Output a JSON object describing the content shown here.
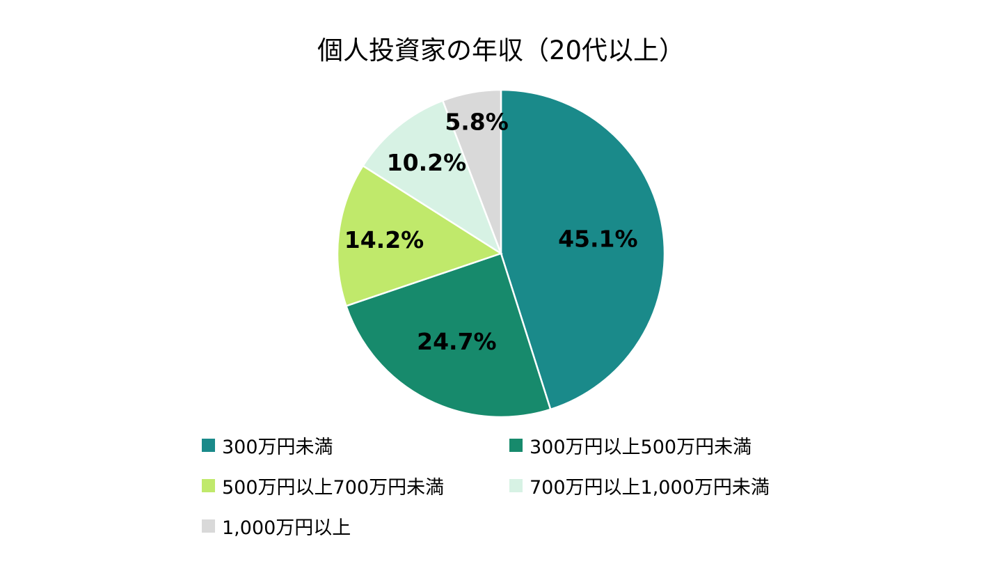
{
  "chart_data": {
    "type": "pie",
    "title": "個人投資家の年収（20代以上）",
    "categories": [
      "300万円未満",
      "300万円以上500万円未満",
      "500万円以上700万円未満",
      "700万円以上1,000万円未満",
      "1,000万円以上"
    ],
    "values": [
      45.1,
      24.7,
      14.2,
      10.2,
      5.8
    ],
    "labels": [
      "45.1%",
      "24.7%",
      "14.2%",
      "10.2%",
      "5.8%"
    ],
    "colors": [
      "#1a8a8a",
      "#178a6c",
      "#c0e96b",
      "#d7f2e4",
      "#d9d9d9"
    ],
    "start_angle": "12 o'clock",
    "direction": "clockwise",
    "legend_position": "bottom"
  },
  "title": "個人投資家の年収（20代以上）",
  "legend": [
    {
      "label": "300万円未満",
      "color": "#1a8a8a"
    },
    {
      "label": "300万円以上500万円未満",
      "color": "#178a6c"
    },
    {
      "label": "500万円以上700万円未満",
      "color": "#c0e96b"
    },
    {
      "label": "700万円以上1,000万円未満",
      "color": "#d7f2e4"
    },
    {
      "label": "1,000万円以上",
      "color": "#d9d9d9"
    }
  ]
}
